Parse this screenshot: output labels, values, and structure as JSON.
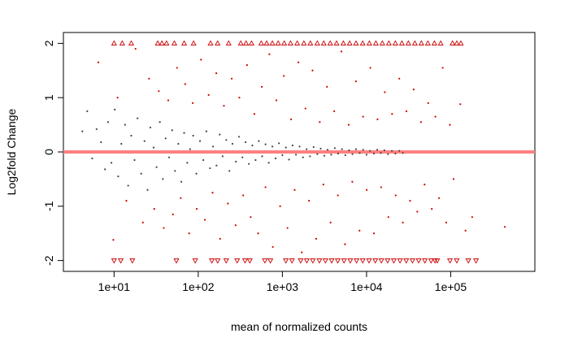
{
  "chart_data": {
    "type": "scatter",
    "title": "",
    "xlabel": "mean of normalized counts",
    "ylabel": "Log2fold Change",
    "x_scale": "log10",
    "xlim": [
      2.5,
      1000000
    ],
    "ylim": [
      -2.2,
      2.2
    ],
    "x_ticks": [
      10,
      100,
      1000,
      10000,
      100000
    ],
    "x_tick_labels": [
      "1e+01",
      "1e+02",
      "1e+03",
      "1e+04",
      "1e+05"
    ],
    "y_ticks": [
      -2,
      -1,
      0,
      1,
      2
    ],
    "y_tick_labels": [
      "-2",
      "-1",
      "0",
      "1",
      "2"
    ],
    "reference_line": {
      "y": 0,
      "color": "#ff8080"
    },
    "grid": false,
    "legend": "none",
    "colors": {
      "significant": "#cc0000",
      "not_significant": "#444444",
      "reference_line": "#ff8080"
    },
    "series": [
      {
        "significant": false,
        "color": "#444444",
        "marker": "dot",
        "points": [
          [
            4.2,
            0.38
          ],
          [
            4.8,
            0.75
          ],
          [
            5.5,
            -0.12
          ],
          [
            6.2,
            0.42
          ],
          [
            7.0,
            0.18
          ],
          [
            7.8,
            -0.32
          ],
          [
            8.5,
            0.55
          ],
          [
            9.3,
            -0.2
          ],
          [
            10.2,
            0.78
          ],
          [
            11.2,
            -0.45
          ],
          [
            12.2,
            0.15
          ],
          [
            13.5,
            0.5
          ],
          [
            14.7,
            -0.62
          ],
          [
            16.0,
            0.3
          ],
          [
            17.5,
            -0.15
          ],
          [
            19.0,
            0.62
          ],
          [
            21.0,
            -0.4
          ],
          [
            23.0,
            0.2
          ],
          [
            25.0,
            -0.7
          ],
          [
            27.0,
            0.45
          ],
          [
            29.5,
            0.08
          ],
          [
            32.0,
            -0.28
          ],
          [
            35.0,
            0.55
          ],
          [
            38.0,
            -0.5
          ],
          [
            41.0,
            0.25
          ],
          [
            45.0,
            -0.1
          ],
          [
            49.0,
            0.4
          ],
          [
            53.0,
            -0.35
          ],
          [
            58.0,
            0.15
          ],
          [
            63.0,
            -0.55
          ],
          [
            68.0,
            0.35
          ],
          [
            74.0,
            -0.2
          ],
          [
            80.0,
            0.05
          ],
          [
            87.0,
            0.3
          ],
          [
            95.0,
            -0.4
          ],
          [
            105.0,
            0.2
          ],
          [
            115.0,
            -0.15
          ],
          [
            125.0,
            0.38
          ],
          [
            138.0,
            -0.3
          ],
          [
            150.0,
            0.1
          ],
          [
            165.0,
            -0.25
          ],
          [
            180.0,
            0.32
          ],
          [
            195.0,
            -0.08
          ],
          [
            215.0,
            0.22
          ],
          [
            235.0,
            -0.35
          ],
          [
            255.0,
            0.15
          ],
          [
            280.0,
            -0.18
          ],
          [
            305.0,
            0.28
          ],
          [
            335.0,
            -0.1
          ],
          [
            365.0,
            0.18
          ],
          [
            400.0,
            -0.22
          ],
          [
            440.0,
            0.12
          ],
          [
            480.0,
            -0.15
          ],
          [
            525.0,
            0.2
          ],
          [
            575.0,
            -0.08
          ],
          [
            630.0,
            0.14
          ],
          [
            690.0,
            -0.2
          ],
          [
            760.0,
            0.1
          ],
          [
            830.0,
            -0.12
          ],
          [
            910.0,
            0.16
          ],
          [
            1000.0,
            -0.06
          ],
          [
            1100.0,
            0.08
          ],
          [
            1200.0,
            -0.14
          ],
          [
            1320.0,
            0.12
          ],
          [
            1450.0,
            -0.05
          ],
          [
            1600.0,
            0.1
          ],
          [
            1760.0,
            -0.1
          ],
          [
            1940.0,
            0.05
          ],
          [
            2130.0,
            -0.08
          ],
          [
            2350.0,
            0.09
          ],
          [
            2600.0,
            -0.04
          ],
          [
            2850.0,
            0.06
          ],
          [
            3150.0,
            -0.07
          ],
          [
            3450.0,
            0.04
          ],
          [
            3800.0,
            -0.05
          ],
          [
            4200.0,
            0.07
          ],
          [
            4600.0,
            -0.03
          ],
          [
            5100.0,
            0.05
          ],
          [
            5600.0,
            -0.06
          ],
          [
            6200.0,
            0.03
          ],
          [
            6800.0,
            -0.04
          ],
          [
            7500.0,
            0.05
          ],
          [
            8300.0,
            -0.02
          ],
          [
            9100.0,
            0.04
          ],
          [
            10000.0,
            -0.05
          ],
          [
            11000.0,
            0.02
          ],
          [
            12200.0,
            -0.03
          ],
          [
            13400.0,
            0.04
          ],
          [
            14800.0,
            -0.02
          ],
          [
            16300.0,
            0.03
          ],
          [
            18000.0,
            -0.04
          ],
          [
            20000.0,
            0.02
          ],
          [
            22000.0,
            -0.03
          ],
          [
            24500.0,
            0.02
          ],
          [
            27000.0,
            -0.02
          ]
        ]
      },
      {
        "significant": true,
        "color": "#cc0000",
        "marker": "dot",
        "points": [
          [
            6.5,
            1.65
          ],
          [
            9.8,
            -1.62
          ],
          [
            11.0,
            1.0
          ],
          [
            14.0,
            -0.9
          ],
          [
            18.0,
            1.9
          ],
          [
            22.0,
            -1.3
          ],
          [
            26.0,
            1.35
          ],
          [
            30.0,
            -1.05
          ],
          [
            34.0,
            1.12
          ],
          [
            39.0,
            -1.4
          ],
          [
            44.0,
            0.95
          ],
          [
            50.0,
            -1.15
          ],
          [
            56.0,
            1.55
          ],
          [
            62.0,
            -0.85
          ],
          [
            70.0,
            1.25
          ],
          [
            78.0,
            -1.5
          ],
          [
            86.0,
            0.9
          ],
          [
            96.0,
            -1.05
          ],
          [
            108.0,
            1.7
          ],
          [
            120.0,
            -1.25
          ],
          [
            133.0,
            1.05
          ],
          [
            148.0,
            -0.75
          ],
          [
            164.0,
            1.45
          ],
          [
            182.0,
            -1.6
          ],
          [
            202.0,
            0.85
          ],
          [
            225.0,
            -0.95
          ],
          [
            250.0,
            1.35
          ],
          [
            278.0,
            -1.35
          ],
          [
            308.0,
            1.0
          ],
          [
            342.0,
            -0.8
          ],
          [
            380.0,
            1.6
          ],
          [
            420.0,
            -1.2
          ],
          [
            465.0,
            0.7
          ],
          [
            515.0,
            -1.5
          ],
          [
            570.0,
            1.2
          ],
          [
            630.0,
            -0.65
          ],
          [
            700.0,
            1.8
          ],
          [
            770.0,
            -1.75
          ],
          [
            850.0,
            0.95
          ],
          [
            940.0,
            -1.0
          ],
          [
            1040.0,
            1.4
          ],
          [
            1150.0,
            -1.4
          ],
          [
            1270.0,
            0.6
          ],
          [
            1400.0,
            -0.7
          ],
          [
            1550.0,
            1.65
          ],
          [
            1700.0,
            -1.85
          ],
          [
            1880.0,
            0.8
          ],
          [
            2070.0,
            -0.9
          ],
          [
            2280.0,
            1.5
          ],
          [
            2520.0,
            -1.6
          ],
          [
            2780.0,
            0.55
          ],
          [
            3070.0,
            -0.6
          ],
          [
            3390.0,
            1.2
          ],
          [
            3740.0,
            -1.3
          ],
          [
            4130.0,
            0.75
          ],
          [
            4560.0,
            -0.8
          ],
          [
            5030.0,
            1.85
          ],
          [
            5550.0,
            -1.7
          ],
          [
            6130.0,
            0.5
          ],
          [
            6770.0,
            -0.55
          ],
          [
            7470.0,
            1.3
          ],
          [
            8250.0,
            -1.45
          ],
          [
            9100.0,
            0.65
          ],
          [
            10050.0,
            -0.7
          ],
          [
            11100.0,
            1.55
          ],
          [
            12250.0,
            -1.5
          ],
          [
            13500.0,
            0.6
          ],
          [
            14900.0,
            -0.65
          ],
          [
            16500.0,
            1.1
          ],
          [
            18200.0,
            -1.2
          ],
          [
            20100.0,
            0.7
          ],
          [
            22200.0,
            -0.8
          ],
          [
            24500.0,
            1.35
          ],
          [
            27000.0,
            -1.3
          ],
          [
            29800.0,
            0.75
          ],
          [
            32900.0,
            -0.9
          ],
          [
            36300.0,
            1.15
          ],
          [
            40100.0,
            -1.1
          ],
          [
            44300.0,
            0.55
          ],
          [
            48900.0,
            -0.6
          ],
          [
            54000.0,
            0.9
          ],
          [
            59600.0,
            -1.05
          ],
          [
            65800.0,
            0.65
          ],
          [
            72700.0,
            -0.85
          ],
          [
            80300.0,
            1.55
          ],
          [
            88600.0,
            -1.3
          ],
          [
            97800.0,
            0.5
          ],
          [
            108000.0,
            -0.5
          ],
          [
            130000.0,
            0.88
          ],
          [
            150000.0,
            -1.45
          ],
          [
            180000.0,
            -1.2
          ],
          [
            440000.0,
            -1.38
          ]
        ]
      },
      {
        "significant": true,
        "color": "#cc0000",
        "marker": "triangle-up",
        "note": "values beyond +2",
        "points": [
          [
            10.0,
            2.0
          ],
          [
            12.5,
            2.0
          ],
          [
            16.0,
            2.0
          ],
          [
            33.0,
            2.0
          ],
          [
            37.0,
            2.0
          ],
          [
            42.0,
            2.0
          ],
          [
            52.0,
            2.0
          ],
          [
            68.0,
            2.0
          ],
          [
            88.0,
            2.0
          ],
          [
            140.0,
            2.0
          ],
          [
            170.0,
            2.0
          ],
          [
            230.0,
            2.0
          ],
          [
            320.0,
            2.0
          ],
          [
            370.0,
            2.0
          ],
          [
            430.0,
            2.0
          ],
          [
            560.0,
            2.0
          ],
          [
            650.0,
            2.0
          ],
          [
            760.0,
            2.0
          ],
          [
            890.0,
            2.0
          ],
          [
            1050.0,
            2.0
          ],
          [
            1250.0,
            2.0
          ],
          [
            1500.0,
            2.0
          ],
          [
            1800.0,
            2.0
          ],
          [
            2150.0,
            2.0
          ],
          [
            2600.0,
            2.0
          ],
          [
            3100.0,
            2.0
          ],
          [
            3700.0,
            2.0
          ],
          [
            4400.0,
            2.0
          ],
          [
            5300.0,
            2.0
          ],
          [
            6300.0,
            2.0
          ],
          [
            7500.0,
            2.0
          ],
          [
            9000.0,
            2.0
          ],
          [
            10800.0,
            2.0
          ],
          [
            12900.0,
            2.0
          ],
          [
            15400.0,
            2.0
          ],
          [
            18400.0,
            2.0
          ],
          [
            22000.0,
            2.0
          ],
          [
            26300.0,
            2.0
          ],
          [
            31400.0,
            2.0
          ],
          [
            37500.0,
            2.0
          ],
          [
            44800.0,
            2.0
          ],
          [
            53500.0,
            2.0
          ],
          [
            64000.0,
            2.0
          ],
          [
            76000.0,
            2.0
          ],
          [
            105000.0,
            2.0
          ],
          [
            118000.0,
            2.0
          ],
          [
            132000.0,
            2.0
          ]
        ]
      },
      {
        "significant": true,
        "color": "#cc0000",
        "marker": "triangle-down",
        "note": "values beyond -2",
        "points": [
          [
            10.0,
            -2.0
          ],
          [
            12.0,
            -2.0
          ],
          [
            16.5,
            -2.0
          ],
          [
            55.0,
            -2.0
          ],
          [
            92.0,
            -2.0
          ],
          [
            145.0,
            -2.0
          ],
          [
            170.0,
            -2.0
          ],
          [
            215.0,
            -2.0
          ],
          [
            290.0,
            -2.0
          ],
          [
            360.0,
            -2.0
          ],
          [
            410.0,
            -2.0
          ],
          [
            620.0,
            -2.0
          ],
          [
            720.0,
            -2.0
          ],
          [
            1100.0,
            -2.0
          ],
          [
            1300.0,
            -2.0
          ],
          [
            1650.0,
            -2.0
          ],
          [
            1950.0,
            -2.0
          ],
          [
            2300.0,
            -2.0
          ],
          [
            2750.0,
            -2.0
          ],
          [
            3250.0,
            -2.0
          ],
          [
            3850.0,
            -2.0
          ],
          [
            4550.0,
            -2.0
          ],
          [
            5400.0,
            -2.0
          ],
          [
            6400.0,
            -2.0
          ],
          [
            7600.0,
            -2.0
          ],
          [
            9000.0,
            -2.0
          ],
          [
            10700.0,
            -2.0
          ],
          [
            12700.0,
            -2.0
          ],
          [
            15000.0,
            -2.0
          ],
          [
            17800.0,
            -2.0
          ],
          [
            21100.0,
            -2.0
          ],
          [
            25000.0,
            -2.0
          ],
          [
            29600.0,
            -2.0
          ],
          [
            35100.0,
            -2.0
          ],
          [
            41600.0,
            -2.0
          ],
          [
            49300.0,
            -2.0
          ],
          [
            58400.0,
            -2.0
          ],
          [
            65000.0,
            -2.0
          ],
          [
            69200.0,
            -2.0
          ],
          [
            98000.0,
            -2.0
          ],
          [
            118000.0,
            -2.0
          ],
          [
            162000.0,
            -2.0
          ],
          [
            200000.0,
            -2.0
          ]
        ]
      }
    ]
  }
}
